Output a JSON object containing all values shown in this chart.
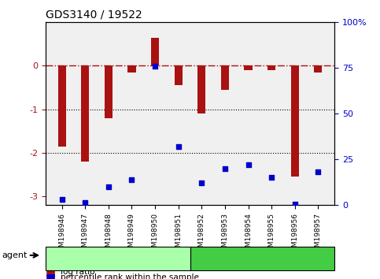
{
  "title": "GDS3140 / 19522",
  "samples": [
    "GSM198946",
    "GSM198947",
    "GSM198948",
    "GSM198949",
    "GSM198950",
    "GSM198951",
    "GSM198952",
    "GSM198953",
    "GSM198954",
    "GSM198955",
    "GSM198956",
    "GSM198957"
  ],
  "log_ratios": [
    -1.85,
    -2.2,
    -1.2,
    -0.15,
    0.65,
    -0.45,
    -1.1,
    -0.55,
    -0.1,
    -0.1,
    -2.55,
    -0.15
  ],
  "percentile_ranks": [
    3,
    1.5,
    10,
    14,
    76,
    32,
    12,
    20,
    22,
    15,
    0.5,
    18
  ],
  "control_samples": [
    "GSM198946",
    "GSM198947",
    "GSM198948",
    "GSM198949",
    "GSM198950",
    "GSM198951"
  ],
  "lithium_samples": [
    "GSM198952",
    "GSM198953",
    "GSM198954",
    "GSM198955",
    "GSM198956",
    "GSM198957"
  ],
  "bar_color": "#aa1111",
  "dot_color": "#0000cc",
  "ylim_left": [
    -3.2,
    1.0
  ],
  "ylim_right": [
    0,
    100
  ],
  "yticks_left": [
    -3,
    -2,
    -1,
    0
  ],
  "yticks_right": [
    0,
    25,
    50,
    75,
    100
  ],
  "control_color": "#aaffaa",
  "lithium_color": "#44cc44",
  "agent_label": "agent",
  "background_color": "#ffffff",
  "grid_color": "#000000"
}
